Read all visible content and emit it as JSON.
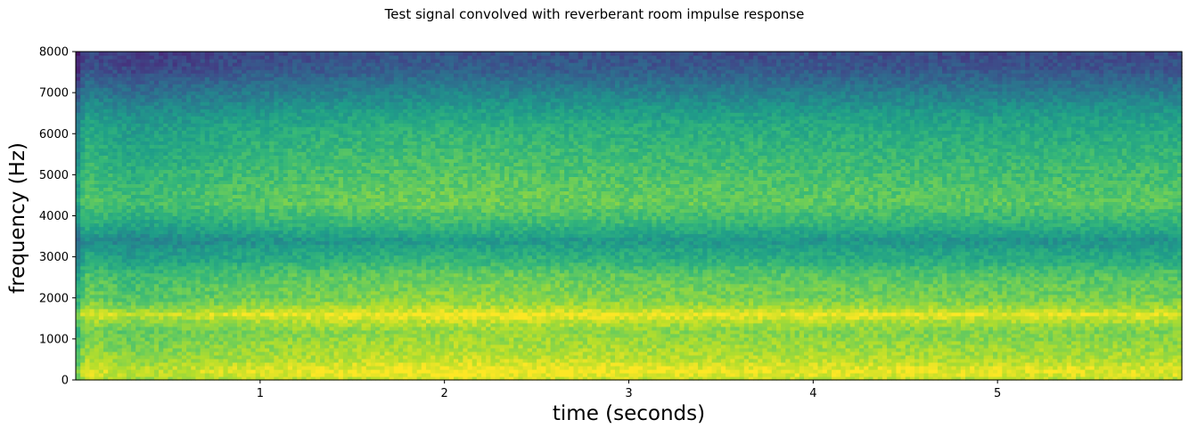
{
  "chart_data": {
    "type": "heatmap",
    "title": "Test signal convolved with reverberant room impulse response",
    "xlabel": "time (seconds)",
    "ylabel": "frequency (Hz)",
    "xlim": [
      0.0,
      6.0
    ],
    "ylim": [
      0,
      8000
    ],
    "xticks": [
      1,
      2,
      3,
      4,
      5
    ],
    "xtick_labels": [
      "1",
      "2",
      "3",
      "4",
      "5"
    ],
    "yticks": [
      0,
      1000,
      2000,
      3000,
      4000,
      5000,
      6000,
      7000,
      8000
    ],
    "ytick_labels": [
      "0",
      "1000",
      "2000",
      "3000",
      "4000",
      "5000",
      "6000",
      "7000",
      "8000"
    ],
    "colormap": "viridis",
    "grid": false,
    "legend": "none",
    "intensity_profile": {
      "frequency_hz": [
        0,
        150,
        250,
        500,
        900,
        1200,
        1450,
        1600,
        1750,
        2000,
        2300,
        2600,
        2900,
        3150,
        3400,
        3600,
        3900,
        4300,
        4700,
        5200,
        5700,
        6200,
        6600,
        7000,
        7300,
        7600,
        8000
      ],
      "level": [
        0.88,
        0.95,
        0.96,
        0.88,
        0.83,
        0.8,
        0.88,
        0.97,
        0.86,
        0.78,
        0.76,
        0.72,
        0.62,
        0.58,
        0.5,
        0.58,
        0.66,
        0.74,
        0.72,
        0.68,
        0.64,
        0.6,
        0.52,
        0.42,
        0.34,
        0.26,
        0.22
      ]
    },
    "time_profile": {
      "time_s": [
        0.0,
        0.05,
        0.3,
        1.0,
        2.0,
        3.0,
        4.0,
        5.0,
        6.0
      ],
      "level_offset": [
        -0.2,
        0.0,
        -0.06,
        0.0,
        0.04,
        0.02,
        0.01,
        0.0,
        0.0
      ]
    }
  }
}
